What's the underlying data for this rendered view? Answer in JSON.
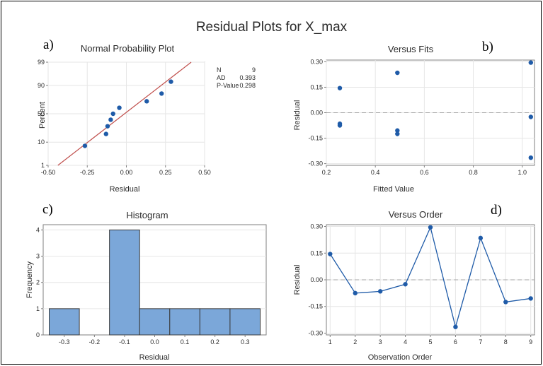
{
  "main_title": "Residual Plots for X_max",
  "panel_letters": [
    "a)",
    "b)",
    "c)",
    "d)"
  ],
  "stats": {
    "N": "9",
    "AD": "0.393",
    "P-Value": "0.298"
  },
  "stat_rows": [
    {
      "label": "N",
      "value": "9"
    },
    {
      "label": "AD",
      "value": "0.393"
    },
    {
      "label": "P-Value",
      "value": "0.298"
    }
  ],
  "chart_data": [
    {
      "type": "scatter",
      "title": "Normal Probability Plot",
      "xlabel": "Residual",
      "ylabel": "Percent",
      "xlim": [
        -0.5,
        0.5
      ],
      "xticks": [
        "-0.50",
        "-0.25",
        "0.00",
        "0.25",
        "0.50"
      ],
      "yticks": [
        "1",
        "10",
        "50",
        "90",
        "99"
      ],
      "x": [
        -0.265,
        -0.13,
        -0.12,
        -0.1,
        -0.085,
        -0.045,
        0.13,
        0.225,
        0.285
      ],
      "y": [
        7.4,
        18.1,
        28.7,
        39.4,
        50,
        60.6,
        71.3,
        81.9,
        92.6
      ],
      "fit_line": true,
      "line_color": "#c0504d",
      "point_color": "#1f5ba8"
    },
    {
      "type": "scatter",
      "title": "Versus Fits",
      "xlabel": "Fitted Value",
      "ylabel": "Residual",
      "xlim": [
        0.2,
        1.05
      ],
      "ylim": [
        -0.31,
        0.31
      ],
      "xticks": [
        "0.2",
        "0.4",
        "0.6",
        "0.8",
        "1.0"
      ],
      "yticks": [
        "-0.30",
        "-0.15",
        "0.00",
        "0.15",
        "0.30"
      ],
      "x": [
        0.255,
        0.255,
        0.255,
        0.49,
        0.49,
        0.49,
        1.035,
        1.035,
        1.035
      ],
      "y": [
        0.145,
        -0.065,
        -0.075,
        0.235,
        -0.105,
        -0.125,
        0.295,
        -0.025,
        -0.265
      ],
      "reference_line": 0,
      "point_color": "#1f5ba8"
    },
    {
      "type": "bar",
      "title": "Histogram",
      "xlabel": "Residual",
      "ylabel": "Frequency",
      "bins": [
        -0.3,
        -0.2,
        -0.1,
        0.0,
        0.1,
        0.2,
        0.3
      ],
      "values": [
        1,
        0,
        4,
        1,
        1,
        1,
        1
      ],
      "xticks": [
        "-0.3",
        "-0.2",
        "-0.1",
        "0.0",
        "0.1",
        "0.2",
        "0.3"
      ],
      "yticks": [
        "0",
        "1",
        "2",
        "3",
        "4"
      ],
      "ylim": [
        0,
        4.2
      ],
      "bar_color": "#7ba7d9"
    },
    {
      "type": "line",
      "title": "Versus Order",
      "xlabel": "Observation Order",
      "ylabel": "Residual",
      "x": [
        1,
        2,
        3,
        4,
        5,
        6,
        7,
        8,
        9
      ],
      "y": [
        0.145,
        -0.075,
        -0.065,
        -0.025,
        0.295,
        -0.265,
        0.235,
        -0.125,
        -0.105
      ],
      "xticks": [
        "1",
        "2",
        "3",
        "4",
        "5",
        "6",
        "7",
        "8",
        "9"
      ],
      "yticks": [
        "-0.30",
        "-0.15",
        "0.00",
        "0.15",
        "0.30"
      ],
      "ylim": [
        -0.31,
        0.31
      ],
      "reference_line": 0,
      "line_color": "#1f5ba8"
    }
  ]
}
